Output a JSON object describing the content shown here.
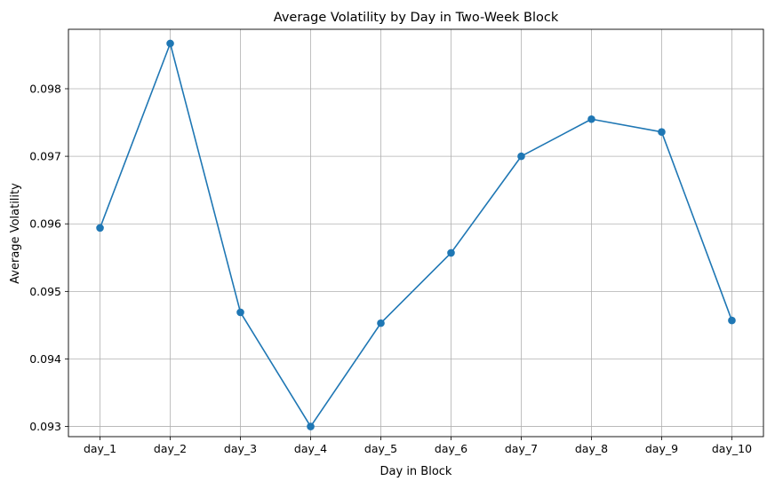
{
  "chart_data": {
    "type": "line",
    "title": "Average Volatility by Day in Two-Week Block",
    "xlabel": "Day in Block",
    "ylabel": "Average Volatility",
    "categories": [
      "day_1",
      "day_2",
      "day_3",
      "day_4",
      "day_5",
      "day_6",
      "day_7",
      "day_8",
      "day_9",
      "day_10"
    ],
    "series": [
      {
        "values": [
          0.09594,
          0.09867,
          0.09469,
          0.093,
          0.09453,
          0.09557,
          0.097,
          0.09755,
          0.09736,
          0.09457
        ],
        "color": "#1f77b4",
        "marker": "circle"
      }
    ],
    "ylim": [
      0.09285,
      0.09888
    ],
    "yticks": [
      0.093,
      0.094,
      0.095,
      0.096,
      0.097,
      0.098
    ],
    "ytick_labels": [
      "0.093",
      "0.094",
      "0.095",
      "0.096",
      "0.097",
      "0.098"
    ],
    "grid": true,
    "legend": "none",
    "colors": {
      "line": "#1f77b4",
      "grid": "#b0b0b0",
      "axes": "#000000"
    }
  }
}
